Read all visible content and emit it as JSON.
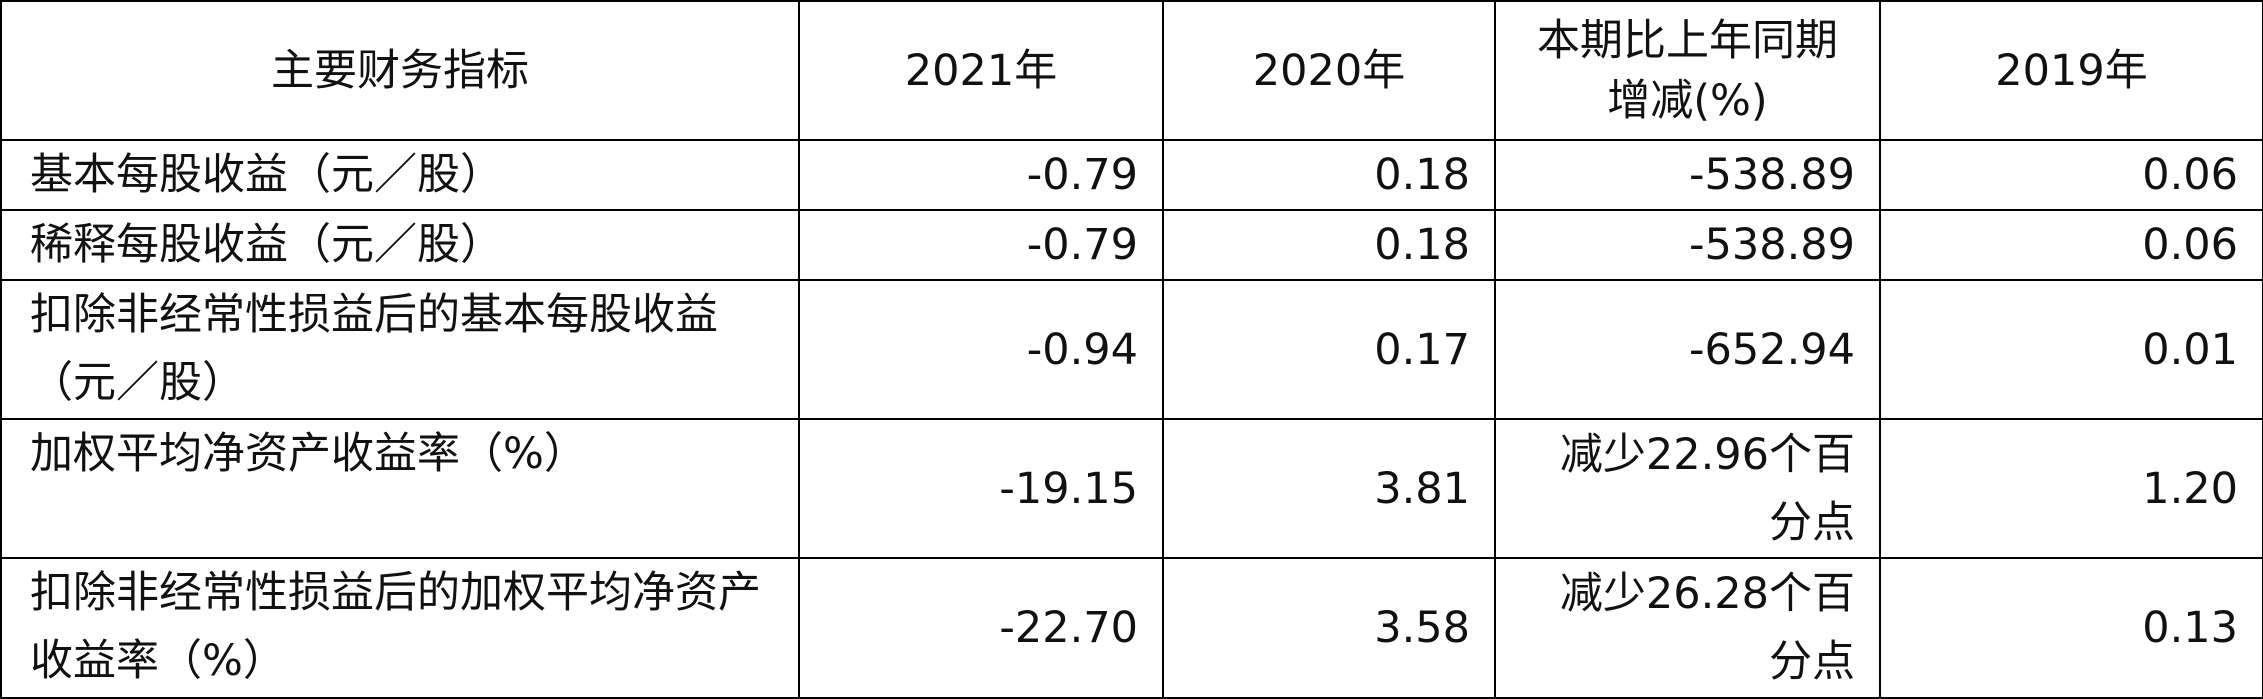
{
  "table": {
    "header": [
      "主要财务指标",
      "2021年",
      "2020年",
      "本期比上年同期增减(%)",
      "2019年"
    ],
    "rows": [
      [
        "基本每股收益（元／股）",
        "-0.79",
        "0.18",
        "-538.89",
        "0.06"
      ],
      [
        "稀释每股收益（元／股）",
        "-0.79",
        "0.18",
        "-538.89",
        "0.06"
      ],
      [
        "扣除非经常性损益后的基本每股收益（元／股）",
        "-0.94",
        "0.17",
        "-652.94",
        "0.01"
      ],
      [
        "加权平均净资产收益率（%）",
        "-19.15",
        "3.81",
        "减少22.96个百分点",
        "1.20"
      ],
      [
        "扣除非经常性损益后的加权平均净资产收益率（%）",
        "-22.70",
        "3.58",
        "减少26.28个百分点",
        "0.13"
      ]
    ]
  }
}
